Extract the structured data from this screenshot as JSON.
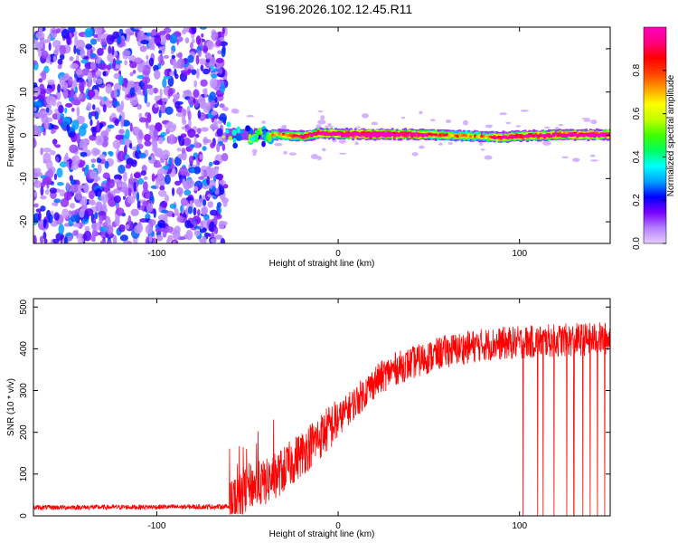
{
  "title": "S196.2026.102.12.45.R11",
  "chart_data": [
    {
      "type": "heatmap",
      "name": "spectrogram",
      "xlabel": "Height of straight line (km)",
      "ylabel": "Frequency (Hz)",
      "xlim": [
        -168,
        150
      ],
      "ylim": [
        -25,
        25
      ],
      "xticks": [
        -100,
        0,
        100
      ],
      "xtick_labels": [
        "-100",
        "0",
        "100"
      ],
      "yticks": [
        -20,
        -10,
        0,
        10,
        20
      ],
      "ytick_labels": [
        "-20",
        "-10",
        "0",
        "10",
        "20"
      ],
      "colorbar": {
        "label": "Normalized spectral amplitude",
        "range": [
          0,
          1
        ],
        "ticks": [
          0,
          0.2,
          0.4,
          0.6,
          0.8
        ],
        "tick_labels": [
          "0.0",
          "0.2",
          "0.4",
          "0.6",
          "0.8"
        ],
        "colormap": [
          "#e6ccff",
          "#b480ff",
          "#7a00ff",
          "#0000ff",
          "#00a0ff",
          "#00ffff",
          "#00ff60",
          "#40ff00",
          "#c0ff00",
          "#ffff00",
          "#ffa000",
          "#ff4000",
          "#ff0000",
          "#ff0080",
          "#ff00c0"
        ]
      },
      "noise_region_x": [
        -168,
        -62
      ],
      "noise_amplitude_range": [
        0.05,
        0.3
      ],
      "signal_line": {
        "x": [
          -62,
          -55,
          -50,
          -45,
          -40,
          -35,
          -30,
          -20,
          -10,
          0,
          20,
          40,
          60,
          80,
          90,
          100,
          120,
          140,
          150
        ],
        "freq": [
          0.5,
          0.3,
          0.0,
          0.5,
          0.0,
          0.2,
          0.0,
          -0.2,
          0.5,
          0.3,
          0.2,
          0.2,
          0.0,
          -0.3,
          -0.5,
          -0.2,
          0.1,
          0.1,
          0.2
        ],
        "amplitude": [
          0.35,
          0.4,
          0.35,
          0.45,
          0.5,
          0.55,
          0.6,
          0.7,
          0.78,
          0.85,
          0.95,
          0.85,
          0.6,
          0.55,
          0.8,
          0.75,
          0.8,
          0.85,
          0.85
        ]
      }
    },
    {
      "type": "line",
      "name": "snr",
      "xlabel": "Height of straight line (km)",
      "ylabel": "SNR (10 * v/v)",
      "xlim": [
        -168,
        150
      ],
      "ylim": [
        0,
        520
      ],
      "xticks": [
        -100,
        0,
        100
      ],
      "xtick_labels": [
        "-100",
        "0",
        "100"
      ],
      "yticks": [
        0,
        100,
        200,
        300,
        400,
        500
      ],
      "ytick_labels": [
        "0",
        "100",
        "200",
        "300",
        "400",
        "500"
      ],
      "line_color": "#ff0000",
      "trend": {
        "x": [
          -168,
          -60,
          -55,
          -50,
          -40,
          -30,
          -20,
          -10,
          0,
          10,
          20,
          30,
          40,
          60,
          80,
          100,
          120,
          150
        ],
        "snr": [
          20,
          22,
          40,
          70,
          80,
          110,
          150,
          190,
          230,
          275,
          320,
          350,
          365,
          395,
          410,
          415,
          420,
          425
        ]
      },
      "noise_spread": 40,
      "dropouts_x": [
        102,
        110,
        113,
        119,
        126,
        130,
        135,
        139,
        143,
        147
      ]
    }
  ]
}
